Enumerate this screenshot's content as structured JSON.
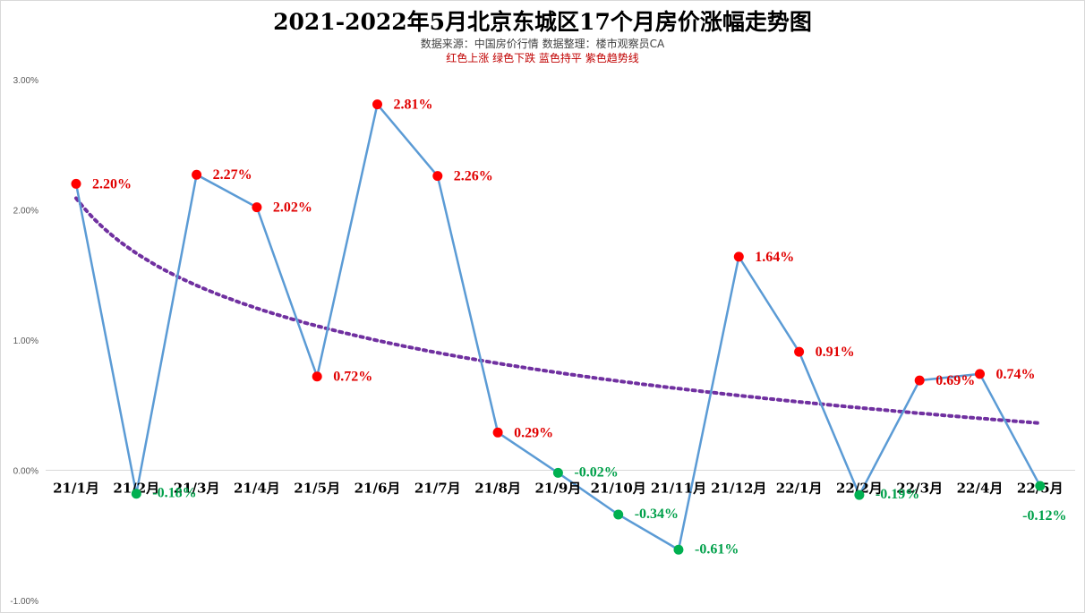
{
  "chart_data": {
    "type": "line",
    "title": "2021-2022年5月北京东城区17个月房价涨幅走势图",
    "subtitle": "数据来源：中国房价行情    数据整理：楼市观察员CA",
    "note": "红色上涨   绿色下跌   蓝色持平   紫色趋势线",
    "categories": [
      "21/1月",
      "21/2月",
      "21/3月",
      "21/4月",
      "21/5月",
      "21/6月",
      "21/7月",
      "21/8月",
      "21/9月",
      "21/10月",
      "21/11月",
      "21/12月",
      "22/1月",
      "22/2月",
      "22/3月",
      "22/4月",
      "22/5月"
    ],
    "values": [
      2.2,
      -0.18,
      2.27,
      2.02,
      0.72,
      2.81,
      2.26,
      0.29,
      -0.02,
      -0.34,
      -0.61,
      1.64,
      0.91,
      -0.19,
      0.69,
      0.74,
      -0.12
    ],
    "data_labels": [
      "2.20%",
      "-0.18%",
      "2.27%",
      "2.02%",
      "0.72%",
      "2.81%",
      "2.26%",
      "0.29%",
      "-0.02%",
      "-0.34%",
      "-0.61%",
      "1.64%",
      "0.91%",
      "-0.19%",
      "0.69%",
      "0.74%",
      "-0.12%"
    ],
    "ylim": [
      -1.0,
      3.0
    ],
    "yticks": [
      3.0,
      2.0,
      1.0,
      0.0,
      -1.0
    ],
    "ytick_labels": [
      "3.00%",
      "2.00%",
      "1.00%",
      "0.00%",
      "-1.00%"
    ],
    "trendline": "logarithmic",
    "grid": false,
    "colors": {
      "line": "#5b9bd5",
      "up": "#ff0000",
      "down": "#00b050",
      "trend": "#7030a0",
      "up_label": "#e00000",
      "down_label": "#00a04a"
    }
  }
}
